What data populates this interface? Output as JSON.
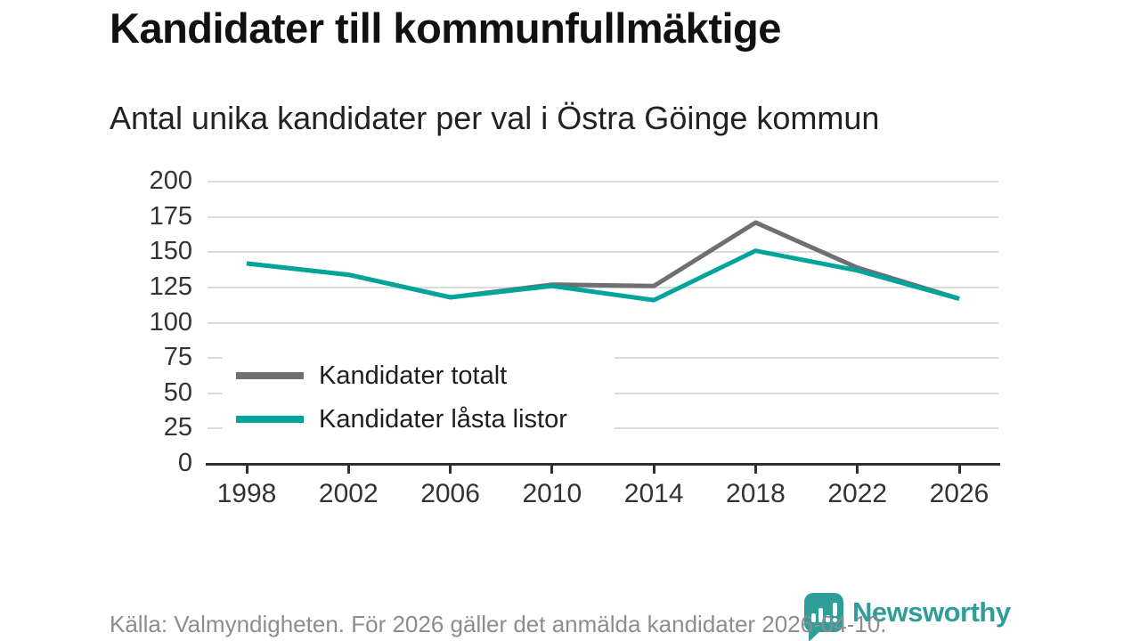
{
  "header": {
    "title": "Kandidater till kommunfullmäktige",
    "subtitle": "Antal unika kandidater per val i Östra Göinge kommun"
  },
  "colors": {
    "series_total": "#6e6e73",
    "series_locked": "#00a49b",
    "grid": "#dcdcdc",
    "axis": "#2f2f2f",
    "newsworthy_teal": "#2f9e99"
  },
  "legend": [
    {
      "label": "Kandidater totalt",
      "color": "#6e6e73"
    },
    {
      "label": "Kandidater låsta listor",
      "color": "#00a49b"
    }
  ],
  "chart_data": {
    "type": "line",
    "categories": [
      "1998",
      "2002",
      "2006",
      "2010",
      "2014",
      "2018",
      "2022",
      "2026"
    ],
    "series": [
      {
        "name": "Kandidater totalt",
        "color": "#6e6e73",
        "values": [
          142,
          134,
          118,
          127,
          126,
          171,
          139,
          117
        ]
      },
      {
        "name": "Kandidater låsta listor",
        "color": "#00a49b",
        "values": [
          142,
          134,
          118,
          126,
          116,
          151,
          137,
          117
        ]
      }
    ],
    "title": "Kandidater till kommunfullmäktige",
    "subtitle": "Antal unika kandidater per val i Östra Göinge kommun",
    "xlabel": "",
    "ylabel": "",
    "ylim": [
      0,
      200
    ],
    "yticks": [
      0,
      25,
      50,
      75,
      100,
      125,
      150,
      175,
      200
    ],
    "grid": true,
    "legend_position": "inside-bottom-left"
  },
  "footer": {
    "source": "Källa: Valmyndigheten. För 2026 gäller det anmälda kandidater 2026-04-10."
  },
  "logo": {
    "text": "Newsworthy"
  }
}
